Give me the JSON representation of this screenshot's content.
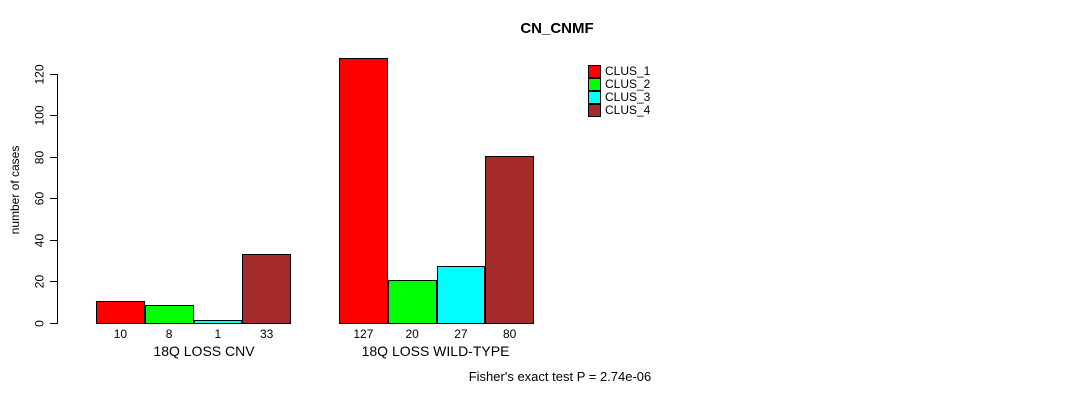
{
  "chart_data": {
    "type": "bar",
    "title": "CN_CNMF",
    "ylabel": "number of cases",
    "xlabel": "",
    "ylim": [
      0,
      130
    ],
    "yticks": [
      0,
      20,
      40,
      60,
      80,
      100,
      120
    ],
    "grid": false,
    "legend_position": "top-right",
    "categories": [
      "18Q LOSS CNV",
      "18Q LOSS WILD-TYPE"
    ],
    "series": [
      {
        "name": "CLUS_1",
        "color": "#FF0000",
        "values": [
          10,
          127
        ]
      },
      {
        "name": "CLUS_2",
        "color": "#00FF00",
        "values": [
          8,
          20
        ]
      },
      {
        "name": "CLUS_3",
        "color": "#00FFFF",
        "values": [
          1,
          27
        ]
      },
      {
        "name": "CLUS_4",
        "color": "#A52A2A",
        "values": [
          33,
          80
        ]
      }
    ],
    "groups": [
      {
        "label": "18Q LOSS CNV",
        "values": [
          10,
          8,
          1,
          33
        ]
      },
      {
        "label": "18Q LOSS WILD-TYPE",
        "values": [
          127,
          20,
          27,
          80
        ]
      }
    ],
    "bar_border_color": "#000000",
    "annotation": "Fisher's exact test P = 2.74e-06"
  }
}
